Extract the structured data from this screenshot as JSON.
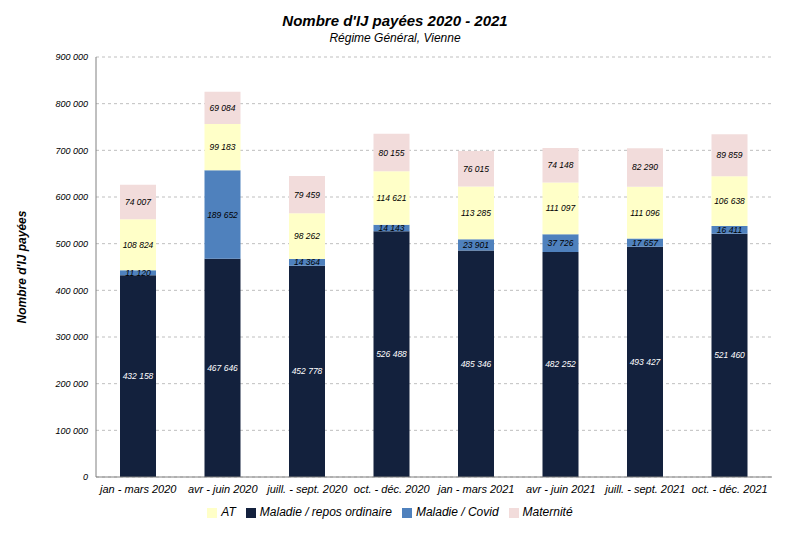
{
  "chart_data": {
    "type": "bar",
    "title": "Nombre d'IJ payées 2020 - 2021",
    "subtitle": "Régime Général, Vienne",
    "y_label": "Nombre d'IJ payées",
    "stacked": true,
    "grid": true,
    "legend": "bottom",
    "data_labels": true,
    "categories": [
      "jan - mars 2020",
      "avr - juin 2020",
      "juill. - sept. 2020",
      "oct. - déc. 2020",
      "jan - mars 2021",
      "avr - juin 2021",
      "juill. - sept. 2021",
      "oct. - déc. 2021"
    ],
    "ylim": [
      0,
      900000
    ],
    "yticks": [
      0,
      {
        "value": 100000,
        "label": "100 000"
      },
      {
        "value": 200000,
        "label": "200 000"
      },
      {
        "value": 300000,
        "label": "300 000"
      },
      {
        "value": 400000,
        "label": "400 000"
      },
      {
        "value": 500000,
        "label": "500 000"
      },
      {
        "value": 600000,
        "label": "600 000"
      },
      {
        "value": 700000,
        "label": "700 000"
      },
      {
        "value": 800000,
        "label": "800 000"
      },
      {
        "value": 900000,
        "label": "900 000"
      }
    ],
    "series": [
      {
        "name": "Maladie  / repos ordinaire",
        "color": "#13213d",
        "values": [
          432158,
          467646,
          452778,
          526488,
          485346,
          482252,
          493427,
          521460
        ],
        "value_labels": [
          "432 158",
          "467 646",
          "452 778",
          "526 488",
          "485 346",
          "482 252",
          "493 427",
          "521 460"
        ]
      },
      {
        "name": "Maladie / Covid",
        "color": "#4f81bd",
        "values": [
          11120,
          189652,
          14364,
          14143,
          23901,
          37726,
          17657,
          16411
        ],
        "value_labels": [
          "11 120",
          "189 652",
          "14 364",
          "14 143",
          "23 901",
          "37 726",
          "17 657",
          "16 411"
        ]
      },
      {
        "name": "AT",
        "color": "#ffffc8",
        "values": [
          108824,
          99183,
          98262,
          114621,
          113285,
          111097,
          111096,
          106638
        ],
        "value_labels": [
          "108 824",
          "99 183",
          "98 262",
          "114 621",
          "113 285",
          "111 097",
          "111 096",
          "106 638"
        ]
      },
      {
        "name": "Maternité",
        "color": "#f2dcdb",
        "values": [
          74007,
          69084,
          79459,
          80155,
          76015,
          74148,
          82290,
          89859
        ],
        "value_labels": [
          "74 007",
          "69 084",
          "79 459",
          "80 155",
          "76 015",
          "74 148",
          "82 290",
          "89 859"
        ]
      }
    ]
  }
}
